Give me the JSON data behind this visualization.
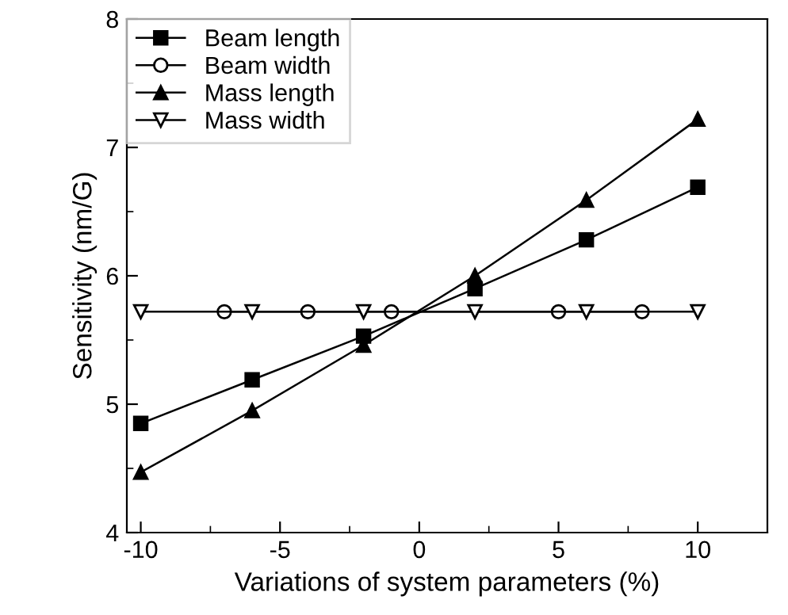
{
  "chart_data": {
    "type": "line",
    "xlabel": "Variations of system parameters (%)",
    "ylabel": "Sensitivity (nm/G)",
    "xlim": [
      -10.5,
      12.5
    ],
    "xticks": [
      -10,
      -5,
      0,
      5,
      10
    ],
    "ylim": [
      4,
      8
    ],
    "yticks": [
      4,
      5,
      6,
      7,
      8
    ],
    "grid": false,
    "legend": "top left",
    "series": [
      {
        "name": "Beam length",
        "color": "#000000",
        "marker": "square",
        "x": [
          -10,
          -6,
          -2,
          2,
          6,
          10
        ],
        "values": [
          4.85,
          5.19,
          5.53,
          5.9,
          6.28,
          6.69
        ]
      },
      {
        "name": "Beam width",
        "color": "#000000",
        "marker": "circle",
        "x": [
          -7,
          -4,
          -1,
          5,
          8
        ],
        "values": [
          5.72,
          5.72,
          5.72,
          5.72,
          5.72
        ]
      },
      {
        "name": "Mass length",
        "color": "#000000",
        "marker": "triangle",
        "x": [
          -10,
          -6,
          -2,
          2,
          6,
          10
        ],
        "values": [
          4.47,
          4.95,
          5.46,
          6.0,
          6.59,
          7.22
        ]
      },
      {
        "name": "Mass width",
        "color": "#000000",
        "marker": "triangle_down",
        "x": [
          -10,
          -6,
          -2,
          2,
          6,
          10
        ],
        "values": [
          5.72,
          5.72,
          5.72,
          5.72,
          5.72,
          5.72
        ]
      }
    ]
  }
}
